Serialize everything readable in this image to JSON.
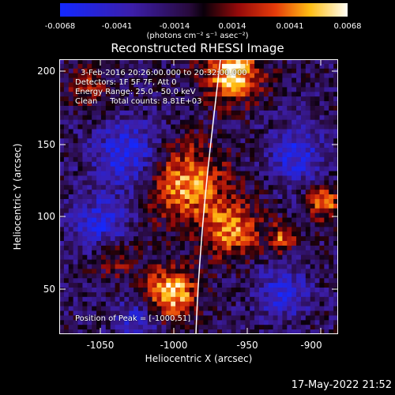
{
  "colorbar": {
    "ticks": [
      "-0.0068",
      "-0.0041",
      "-0.0014",
      "0.0014",
      "0.0041",
      "0.0068"
    ],
    "units": "(photons cm⁻² s⁻¹ asec⁻²)",
    "vmin": -0.0068,
    "vmax": 0.0068
  },
  "title": "Reconstructed RHESSI Image",
  "info": {
    "time": "3-Feb-2016 20:26:00.000 to 20:32:00.000",
    "detectors": "Detectors: 1F 5F 7F, Att 0",
    "energy": "Energy Range: 25.0 - 50.0 keV",
    "clean": "Clean     Total counts: 8.81E+03",
    "peak": "Position of Peak = [-1000,51]"
  },
  "axes": {
    "xlabel": "Heliocentric X (arcsec)",
    "ylabel": "Heliocentric Y (arcsec)",
    "xticks": [
      "-1050",
      "-1000",
      "-950",
      "-900"
    ],
    "yticks": [
      "200",
      "150",
      "100",
      "50"
    ],
    "xlim": [
      -1067,
      -877
    ],
    "ylim": [
      16,
      208
    ]
  },
  "timestamp": "17-May-2022 21:52"
}
